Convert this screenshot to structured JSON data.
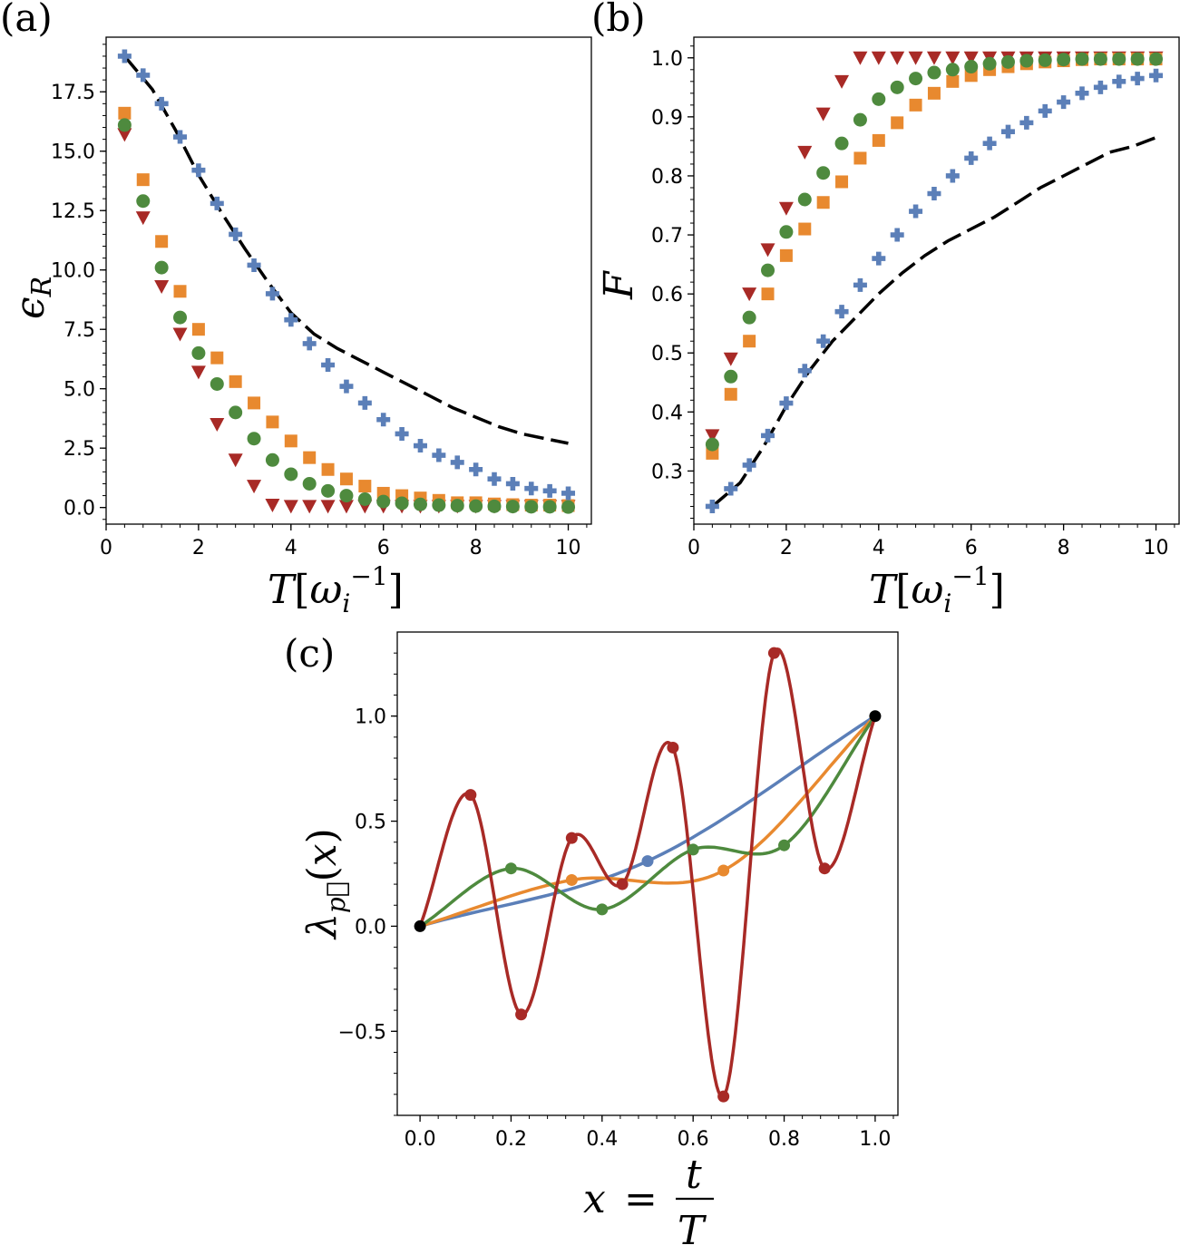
{
  "colors": {
    "blue": "#5b7fb8",
    "orange": "#e8892f",
    "green": "#4e8a3e",
    "red": "#a82a26",
    "black": "#000000"
  },
  "chart_data": [
    {
      "panel_label": "(a)",
      "type": "scatter",
      "xlabel": "T[ω_i^−1]",
      "ylabel": "ε_R",
      "xlim": [
        0,
        10.5
      ],
      "ylim": [
        -0.7,
        19.8
      ],
      "x_ticks": [
        "0",
        "2",
        "4",
        "6",
        "8",
        "10"
      ],
      "y_ticks": [
        "0.0",
        "2.5",
        "5.0",
        "7.5",
        "10.0",
        "12.5",
        "15.0",
        "17.5"
      ],
      "grid": false,
      "x": [
        0.4,
        0.8,
        1.2,
        1.6,
        2.0,
        2.4,
        2.8,
        3.2,
        3.6,
        4.0,
        4.4,
        4.8,
        5.2,
        5.6,
        6.0,
        6.4,
        6.8,
        7.2,
        7.6,
        8.0,
        8.4,
        8.8,
        9.2,
        9.6,
        10.0
      ],
      "series": [
        {
          "marker": "plus",
          "color": "blue",
          "values": [
            19.0,
            18.2,
            17.0,
            15.6,
            14.2,
            12.8,
            11.5,
            10.2,
            9.0,
            7.9,
            6.9,
            6.0,
            5.1,
            4.4,
            3.7,
            3.1,
            2.6,
            2.2,
            1.9,
            1.6,
            1.2,
            1.0,
            0.8,
            0.7,
            0.6
          ]
        },
        {
          "marker": "square",
          "color": "orange",
          "values": [
            16.6,
            13.8,
            11.2,
            9.1,
            7.5,
            6.3,
            5.3,
            4.4,
            3.6,
            2.8,
            2.1,
            1.6,
            1.2,
            0.9,
            0.6,
            0.5,
            0.4,
            0.3,
            0.2,
            0.2,
            0.15,
            0.12,
            0.1,
            0.1,
            0.08
          ]
        },
        {
          "marker": "circle",
          "color": "green",
          "values": [
            16.1,
            12.9,
            10.1,
            8.0,
            6.5,
            5.2,
            4.0,
            2.9,
            2.0,
            1.4,
            1.0,
            0.7,
            0.5,
            0.35,
            0.25,
            0.18,
            0.13,
            0.1,
            0.08,
            0.06,
            0.05,
            0.04,
            0.03,
            0.03,
            0.02
          ]
        },
        {
          "marker": "triangle-down",
          "color": "red",
          "values": [
            15.7,
            12.2,
            9.3,
            7.3,
            5.7,
            3.5,
            2.0,
            0.9,
            0.1,
            0.05,
            0.05,
            0.05,
            0.05,
            0.05,
            0.05,
            0.05,
            0.05,
            0.05,
            0.05,
            0.05,
            0.05,
            0.05,
            0.05,
            0.05,
            0.05
          ]
        },
        {
          "marker": "dashed-line",
          "color": "black",
          "x": [
            0.4,
            1.0,
            1.5,
            2.0,
            2.5,
            3.0,
            3.5,
            4.0,
            4.5,
            5.0,
            5.5,
            6.0,
            6.5,
            7.0,
            7.5,
            8.0,
            8.5,
            9.0,
            9.5,
            10.0
          ],
          "values": [
            19.0,
            17.6,
            15.9,
            14.0,
            12.4,
            10.9,
            9.5,
            8.2,
            7.3,
            6.7,
            6.2,
            5.7,
            5.2,
            4.7,
            4.2,
            3.8,
            3.4,
            3.1,
            2.9,
            2.7
          ]
        }
      ]
    },
    {
      "panel_label": "(b)",
      "type": "scatter",
      "xlabel": "T[ω_i^−1]",
      "ylabel": "F",
      "xlim": [
        0,
        10.5
      ],
      "ylim": [
        0.21,
        1.035
      ],
      "x_ticks": [
        "0",
        "2",
        "4",
        "6",
        "8",
        "10"
      ],
      "y_ticks": [
        "0.3",
        "0.4",
        "0.5",
        "0.6",
        "0.7",
        "0.8",
        "0.9",
        "1.0"
      ],
      "grid": false,
      "x": [
        0.4,
        0.8,
        1.2,
        1.6,
        2.0,
        2.4,
        2.8,
        3.2,
        3.6,
        4.0,
        4.4,
        4.8,
        5.2,
        5.6,
        6.0,
        6.4,
        6.8,
        7.2,
        7.6,
        8.0,
        8.4,
        8.8,
        9.2,
        9.6,
        10.0
      ],
      "series": [
        {
          "marker": "plus",
          "color": "blue",
          "values": [
            0.24,
            0.27,
            0.31,
            0.36,
            0.415,
            0.47,
            0.52,
            0.57,
            0.615,
            0.66,
            0.7,
            0.74,
            0.77,
            0.8,
            0.83,
            0.855,
            0.875,
            0.89,
            0.91,
            0.925,
            0.94,
            0.95,
            0.96,
            0.965,
            0.97
          ]
        },
        {
          "marker": "square",
          "color": "orange",
          "values": [
            0.33,
            0.43,
            0.52,
            0.6,
            0.665,
            0.71,
            0.755,
            0.79,
            0.83,
            0.86,
            0.89,
            0.92,
            0.94,
            0.96,
            0.97,
            0.98,
            0.985,
            0.99,
            0.993,
            0.995,
            0.997,
            0.998,
            0.998,
            0.998,
            0.998
          ]
        },
        {
          "marker": "circle",
          "color": "green",
          "values": [
            0.345,
            0.46,
            0.56,
            0.64,
            0.705,
            0.76,
            0.805,
            0.855,
            0.895,
            0.93,
            0.95,
            0.965,
            0.975,
            0.98,
            0.985,
            0.99,
            0.993,
            0.995,
            0.996,
            0.997,
            0.998,
            0.998,
            0.998,
            0.998,
            0.998
          ]
        },
        {
          "marker": "triangle-down",
          "color": "red",
          "values": [
            0.36,
            0.49,
            0.6,
            0.675,
            0.745,
            0.84,
            0.905,
            0.96,
            1.0,
            1.0,
            1.0,
            1.0,
            1.0,
            1.0,
            1.0,
            1.0,
            1.0,
            1.0,
            1.0,
            1.0,
            1.0,
            1.0,
            1.0,
            1.0,
            1.0
          ]
        },
        {
          "marker": "dashed-line",
          "color": "black",
          "x": [
            0.4,
            1.0,
            1.5,
            2.0,
            2.5,
            3.0,
            3.5,
            4.0,
            4.5,
            5.0,
            5.5,
            6.0,
            6.5,
            7.0,
            7.5,
            8.0,
            8.5,
            9.0,
            9.5,
            10.0
          ],
          "values": [
            0.24,
            0.28,
            0.34,
            0.41,
            0.47,
            0.52,
            0.56,
            0.6,
            0.635,
            0.665,
            0.69,
            0.71,
            0.73,
            0.755,
            0.78,
            0.8,
            0.82,
            0.84,
            0.85,
            0.865
          ]
        }
      ]
    },
    {
      "panel_label": "(c)",
      "type": "line",
      "xlabel_lhs": "x",
      "xlabel_eq": "=",
      "xlabel_num": "t",
      "xlabel_den": "T",
      "ylabel": "λ_p(x)",
      "xlim": [
        -0.05,
        1.05
      ],
      "ylim": [
        -0.9,
        1.4
      ],
      "x_ticks": [
        "0.0",
        "0.2",
        "0.4",
        "0.6",
        "0.8",
        "1.0"
      ],
      "y_ticks": [
        "−0.5",
        "0.0",
        "0.5",
        "1.0"
      ],
      "grid": false,
      "endpoints": {
        "color": "black",
        "x": [
          0.0,
          1.0
        ],
        "values": [
          0.0,
          1.0
        ]
      },
      "series": [
        {
          "color": "blue",
          "nodes_x": [
            0,
            0.5,
            1
          ],
          "nodes_y": [
            0,
            0.31,
            1
          ]
        },
        {
          "color": "orange",
          "nodes_x": [
            0,
            0.3333,
            0.6667,
            1
          ],
          "nodes_y": [
            0,
            0.22,
            0.265,
            1
          ]
        },
        {
          "color": "green",
          "nodes_x": [
            0,
            0.2,
            0.4,
            0.6,
            0.8,
            1
          ],
          "nodes_y": [
            0,
            0.275,
            0.08,
            0.365,
            0.385,
            1
          ]
        },
        {
          "color": "red",
          "nodes_x": [
            0,
            0.1111,
            0.2222,
            0.3333,
            0.4444,
            0.5556,
            0.6667,
            0.7778,
            0.8889,
            1
          ],
          "nodes_y": [
            0,
            0.625,
            -0.42,
            0.42,
            0.2,
            0.85,
            -0.81,
            1.3,
            0.275,
            1
          ]
        }
      ]
    }
  ]
}
